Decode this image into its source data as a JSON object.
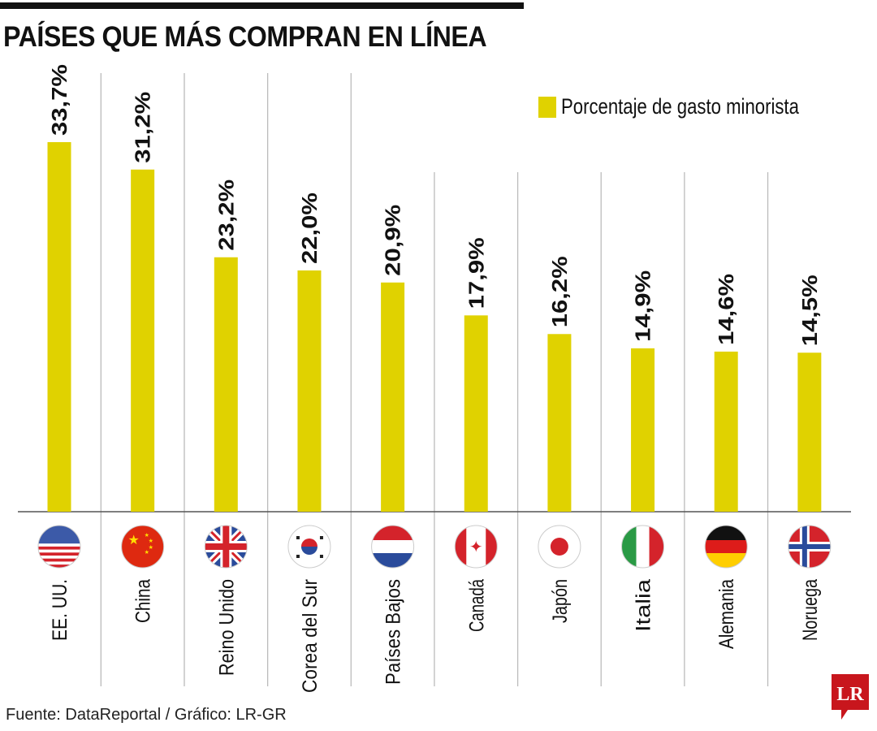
{
  "title": "PAÍSES QUE MÁS COMPRAN EN LÍNEA",
  "legend": {
    "label": "Porcentaje de gasto minorista",
    "color": "#e0d200"
  },
  "source": "Fuente: DataReportal / Gráfico: LR-GR",
  "logo": {
    "text": "LR",
    "color": "#c8161d"
  },
  "chart_data": {
    "type": "bar",
    "title": "PAÍSES QUE MÁS COMPRAN EN LÍNEA",
    "categories": [
      "EE. UU.",
      "China",
      "Reino Unido",
      "Corea del Sur",
      "Países Bajos",
      "Canadá",
      "Japón",
      "Italia",
      "Alemania",
      "Noruega"
    ],
    "flags": [
      "us-flag-icon",
      "china-flag-icon",
      "uk-flag-icon",
      "south-korea-flag-icon",
      "netherlands-flag-icon",
      "canada-flag-icon",
      "japan-flag-icon",
      "italy-flag-icon",
      "germany-flag-icon",
      "norway-flag-icon"
    ],
    "series": [
      {
        "name": "Porcentaje de gasto minorista",
        "values": [
          33.7,
          31.2,
          23.2,
          22.0,
          20.9,
          17.9,
          16.2,
          14.9,
          14.6,
          14.5
        ]
      }
    ],
    "labels": [
      "33,7%",
      "31,2%",
      "23,2%",
      "22,0%",
      "20,9%",
      "17,9%",
      "16,2%",
      "14,9%",
      "14,6%",
      "14,5%"
    ],
    "xlabel": "",
    "ylabel": "",
    "ylim": [
      0,
      33.7
    ],
    "grid": false,
    "legend_position": "top-right",
    "bar_color": "#e0d200"
  }
}
